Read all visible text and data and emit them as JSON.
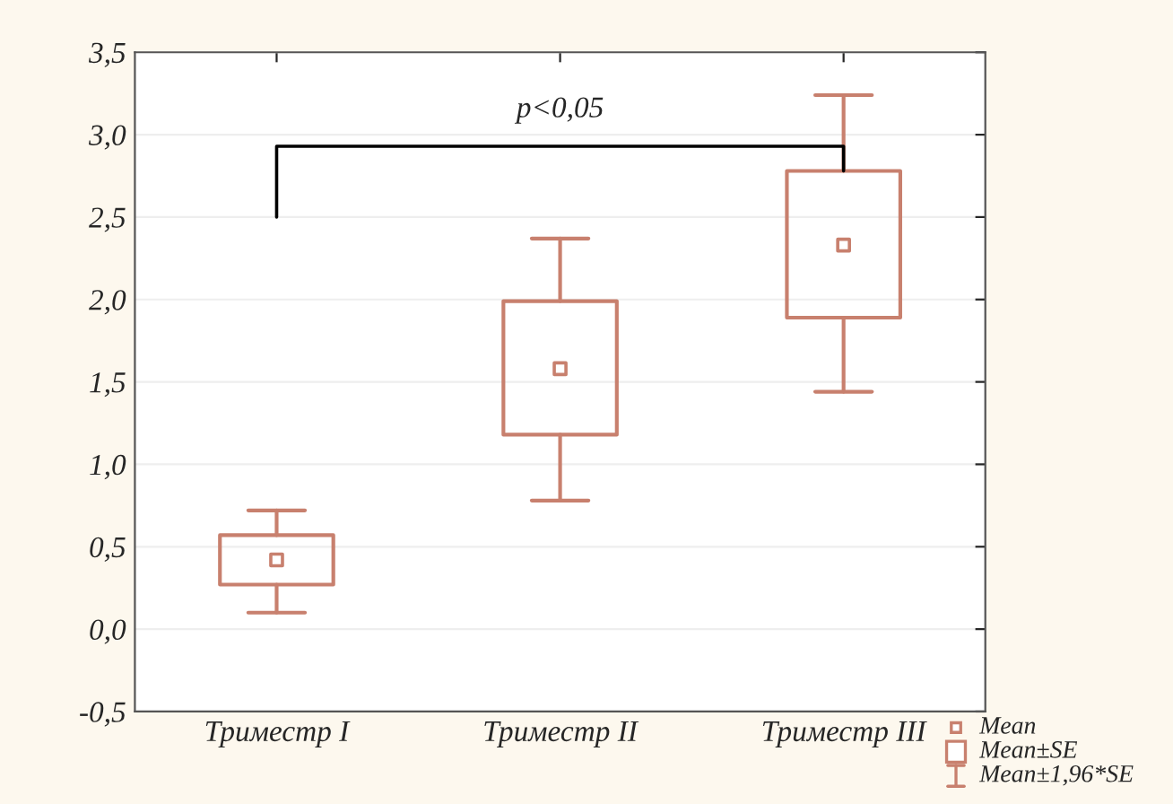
{
  "chart_data": {
    "type": "box",
    "categories": [
      "Триместр I",
      "Триместр II",
      "Триместр III"
    ],
    "boxes": [
      {
        "low": 0.1,
        "q1": 0.27,
        "q3": 0.57,
        "high": 0.72,
        "mean": 0.42
      },
      {
        "low": 0.78,
        "q1": 1.18,
        "q3": 1.99,
        "high": 2.37,
        "mean": 1.58
      },
      {
        "low": 1.44,
        "q1": 1.89,
        "q3": 2.78,
        "high": 3.24,
        "mean": 2.33
      }
    ],
    "color": "#c8806e",
    "ylim": [
      -0.5,
      3.5
    ],
    "yticks": [
      {
        "value": -0.5,
        "label": "-0,5"
      },
      {
        "value": 0.0,
        "label": "0,0"
      },
      {
        "value": 0.5,
        "label": "0,5"
      },
      {
        "value": 1.0,
        "label": "1,0"
      },
      {
        "value": 1.5,
        "label": "1,5"
      },
      {
        "value": 2.0,
        "label": "2,0"
      },
      {
        "value": 2.5,
        "label": "2,5"
      },
      {
        "value": 3.0,
        "label": "3,0"
      },
      {
        "value": 3.5,
        "label": "3,5"
      }
    ],
    "grid": "y",
    "annotations": [
      "p<0,05",
      "Mean",
      "Mean±SE",
      "Mean±1,96*SE"
    ]
  }
}
